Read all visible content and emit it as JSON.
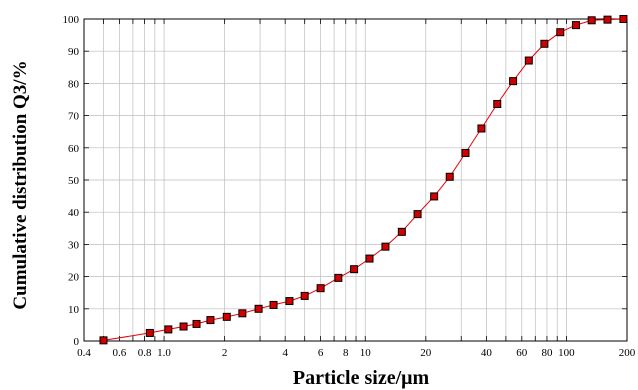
{
  "chart_data": {
    "type": "line",
    "xlabel": "Particle size/μm",
    "ylabel": "Cumulative distribution Q3/%",
    "x_scale": "log",
    "xlim": [
      0.4,
      200
    ],
    "ylim": [
      0,
      100
    ],
    "grid": true,
    "x_tick_labels": [
      {
        "value": 0.4,
        "label": "0.4"
      },
      {
        "value": 0.6,
        "label": "0.6"
      },
      {
        "value": 0.8,
        "label": "0.8"
      },
      {
        "value": 1.0,
        "label": "1.0"
      },
      {
        "value": 2,
        "label": "2"
      },
      {
        "value": 4,
        "label": "4"
      },
      {
        "value": 6,
        "label": "6"
      },
      {
        "value": 8,
        "label": "8"
      },
      {
        "value": 10,
        "label": "10"
      },
      {
        "value": 20,
        "label": "20"
      },
      {
        "value": 40,
        "label": "40"
      },
      {
        "value": 60,
        "label": "60"
      },
      {
        "value": 80,
        "label": "80"
      },
      {
        "value": 100,
        "label": "100"
      },
      {
        "value": 200,
        "label": "200"
      }
    ],
    "y_ticks": [
      0,
      10,
      20,
      30,
      40,
      50,
      60,
      70,
      80,
      90,
      100
    ],
    "line_color": "#e8000b",
    "marker_color": "#d00000",
    "series": [
      {
        "x": [
          0.5,
          0.85,
          1.05,
          1.25,
          1.45,
          1.7,
          2.05,
          2.45,
          2.95,
          3.5,
          4.2,
          5.0,
          6.0,
          7.35,
          8.8,
          10.5,
          12.6,
          15.2,
          18.2,
          22.0,
          26.3,
          31.5,
          37.8,
          45.3,
          54.3,
          65.0,
          77.7,
          93.2,
          111.5,
          133.5,
          160.0,
          192.0
        ],
        "y": [
          0.2,
          2.5,
          3.6,
          4.5,
          5.3,
          6.5,
          7.5,
          8.6,
          10.0,
          11.2,
          12.4,
          14.0,
          16.4,
          19.6,
          22.3,
          25.6,
          29.3,
          33.9,
          39.4,
          44.9,
          51.0,
          58.4,
          66.0,
          73.6,
          80.7,
          87.1,
          92.3,
          95.9,
          98.1,
          99.6,
          99.8,
          100.0
        ]
      }
    ]
  }
}
